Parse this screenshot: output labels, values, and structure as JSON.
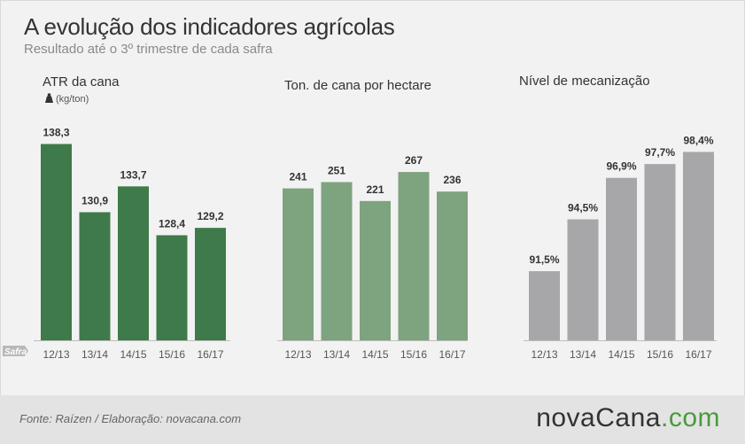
{
  "header": {
    "title": "A evolução dos indicadores agrícolas",
    "subtitle": "Resultado até o 3º trimestre de cada safra"
  },
  "axis_badge": "Safra",
  "footer": {
    "source": "Fonte: Raízen / Elaboração: novacana.com",
    "logo_main": "novaCana",
    "logo_dot": ".",
    "logo_tld": "com"
  },
  "colors": {
    "atr": "#3f7a4a",
    "ton": "#7ea37f",
    "mec": "#a7a7aa",
    "background": "#f2f2f2",
    "footer": "#e3e3e3",
    "brand_green": "#4a9a3d"
  },
  "chart_data": [
    {
      "type": "bar",
      "title": "ATR da cana",
      "unit_icon": "weight-icon",
      "unit": "(kg/ton)",
      "categories": [
        "12/13",
        "13/14",
        "14/15",
        "15/16",
        "16/17"
      ],
      "values": [
        138.3,
        130.9,
        133.7,
        128.4,
        129.2
      ],
      "labels": [
        "138,3",
        "130,9",
        "133,7",
        "128,4",
        "129,2"
      ],
      "ylim": [
        117,
        139.5
      ],
      "color": "#3f7a4a",
      "grid": false
    },
    {
      "type": "bar",
      "title": "Ton. de cana por hectare",
      "categories": [
        "12/13",
        "13/14",
        "14/15",
        "15/16",
        "16/17"
      ],
      "values": [
        241,
        251,
        221,
        267,
        236
      ],
      "labels": [
        "241",
        "251",
        "221",
        "267",
        "236"
      ],
      "ylim": [
        0,
        329
      ],
      "color": "#7ea37f",
      "grid": false
    },
    {
      "type": "bar",
      "title": "Nível de mecanização",
      "categories": [
        "12/13",
        "13/14",
        "14/15",
        "15/16",
        "16/17"
      ],
      "values": [
        91.5,
        94.5,
        96.9,
        97.7,
        98.4
      ],
      "labels": [
        "91,5%",
        "94,5%",
        "96,9%",
        "97,7%",
        "98,4%"
      ],
      "ylim": [
        87.5,
        99.5
      ],
      "color": "#a7a7aa",
      "grid": false
    }
  ]
}
